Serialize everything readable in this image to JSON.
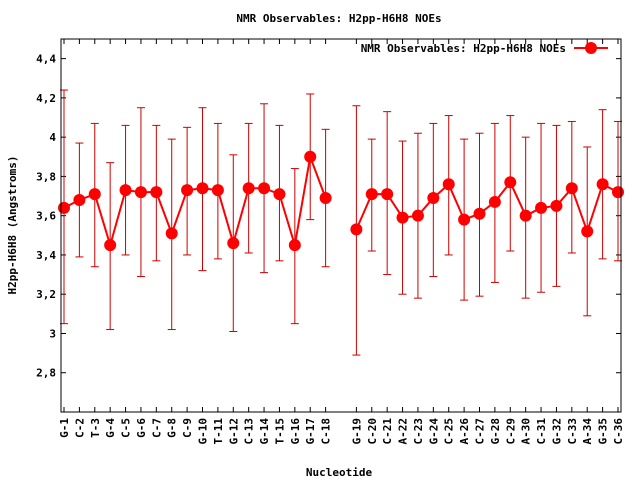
{
  "chart_data": {
    "type": "line",
    "title": "NMR Observables: H2pp-H6H8 NOEs",
    "xlabel": "Nucleotide",
    "ylabel": "H2pp-H6H8 (Angstroms)",
    "ylim": [
      2.6,
      4.5
    ],
    "yticks": [
      "2,8",
      "3",
      "3,2",
      "3,4",
      "3,6",
      "3,8",
      "4",
      "4,2",
      "4,4"
    ],
    "yticks_values": [
      2.8,
      3.0,
      3.2,
      3.4,
      3.6,
      3.8,
      4.0,
      4.2,
      4.4
    ],
    "legend_position": "top-right",
    "colors": {
      "series": "#ff0000",
      "errorbars": "#cc0000"
    },
    "series": [
      {
        "name": "NMR Observables: H2pp-H6H8 NOEs",
        "points": [
          {
            "label": "G-1",
            "index": 1,
            "y": 3.64,
            "ylow": 3.05,
            "yhigh": 4.24
          },
          {
            "label": "C-2",
            "index": 2,
            "y": 3.68,
            "ylow": 3.39,
            "yhigh": 3.97
          },
          {
            "label": "T-3",
            "index": 3,
            "y": 3.71,
            "ylow": 3.34,
            "yhigh": 4.07
          },
          {
            "label": "G-4",
            "index": 4,
            "y": 3.45,
            "ylow": 3.02,
            "yhigh": 3.87
          },
          {
            "label": "C-5",
            "index": 5,
            "y": 3.73,
            "ylow": 3.4,
            "yhigh": 4.06
          },
          {
            "label": "G-6",
            "index": 6,
            "y": 3.72,
            "ylow": 3.29,
            "yhigh": 4.15
          },
          {
            "label": "C-7",
            "index": 7,
            "y": 3.72,
            "ylow": 3.37,
            "yhigh": 4.06
          },
          {
            "label": "G-8",
            "index": 8,
            "y": 3.51,
            "ylow": 3.02,
            "yhigh": 3.99
          },
          {
            "label": "C-9",
            "index": 9,
            "y": 3.73,
            "ylow": 3.4,
            "yhigh": 4.05
          },
          {
            "label": "G-10",
            "index": 10,
            "y": 3.74,
            "ylow": 3.32,
            "yhigh": 4.15
          },
          {
            "label": "T-11",
            "index": 11,
            "y": 3.73,
            "ylow": 3.38,
            "yhigh": 4.07
          },
          {
            "label": "G-12",
            "index": 12,
            "y": 3.46,
            "ylow": 3.01,
            "yhigh": 3.91
          },
          {
            "label": "C-13",
            "index": 13,
            "y": 3.74,
            "ylow": 3.41,
            "yhigh": 4.07
          },
          {
            "label": "G-14",
            "index": 14,
            "y": 3.74,
            "ylow": 3.31,
            "yhigh": 4.17
          },
          {
            "label": "T-15",
            "index": 15,
            "y": 3.71,
            "ylow": 3.37,
            "yhigh": 4.06
          },
          {
            "label": "G-16",
            "index": 16,
            "y": 3.45,
            "ylow": 3.05,
            "yhigh": 3.84
          },
          {
            "label": "G-17",
            "index": 17,
            "y": 3.9,
            "ylow": 3.58,
            "yhigh": 4.22
          },
          {
            "label": "C-18",
            "index": 18,
            "y": 3.69,
            "ylow": 3.34,
            "yhigh": 4.04
          },
          {
            "label": "G-19",
            "index": 20,
            "y": 3.53,
            "ylow": 2.89,
            "yhigh": 4.16
          },
          {
            "label": "C-20",
            "index": 21,
            "y": 3.71,
            "ylow": 3.42,
            "yhigh": 3.99
          },
          {
            "label": "C-21",
            "index": 22,
            "y": 3.71,
            "ylow": 3.3,
            "yhigh": 4.13
          },
          {
            "label": "A-22",
            "index": 23,
            "y": 3.59,
            "ylow": 3.2,
            "yhigh": 3.98
          },
          {
            "label": "C-23",
            "index": 24,
            "y": 3.6,
            "ylow": 3.18,
            "yhigh": 4.02
          },
          {
            "label": "G-24",
            "index": 25,
            "y": 3.69,
            "ylow": 3.29,
            "yhigh": 4.07
          },
          {
            "label": "C-25",
            "index": 26,
            "y": 3.76,
            "ylow": 3.4,
            "yhigh": 4.11
          },
          {
            "label": "A-26",
            "index": 27,
            "y": 3.58,
            "ylow": 3.17,
            "yhigh": 3.99
          },
          {
            "label": "C-27",
            "index": 28,
            "y": 3.61,
            "ylow": 3.19,
            "yhigh": 4.02
          },
          {
            "label": "G-28",
            "index": 29,
            "y": 3.67,
            "ylow": 3.26,
            "yhigh": 4.07
          },
          {
            "label": "C-29",
            "index": 30,
            "y": 3.77,
            "ylow": 3.42,
            "yhigh": 4.11
          },
          {
            "label": "A-30",
            "index": 31,
            "y": 3.6,
            "ylow": 3.18,
            "yhigh": 4.0
          },
          {
            "label": "C-31",
            "index": 32,
            "y": 3.64,
            "ylow": 3.21,
            "yhigh": 4.07
          },
          {
            "label": "G-32",
            "index": 33,
            "y": 3.65,
            "ylow": 3.24,
            "yhigh": 4.06
          },
          {
            "label": "C-33",
            "index": 34,
            "y": 3.74,
            "ylow": 3.41,
            "yhigh": 4.08
          },
          {
            "label": "A-34",
            "index": 35,
            "y": 3.52,
            "ylow": 3.09,
            "yhigh": 3.95
          },
          {
            "label": "G-35",
            "index": 36,
            "y": 3.76,
            "ylow": 3.38,
            "yhigh": 4.14
          },
          {
            "label": "C-36",
            "index": 37,
            "y": 3.72,
            "ylow": 3.37,
            "yhigh": 4.08
          }
        ]
      }
    ]
  }
}
